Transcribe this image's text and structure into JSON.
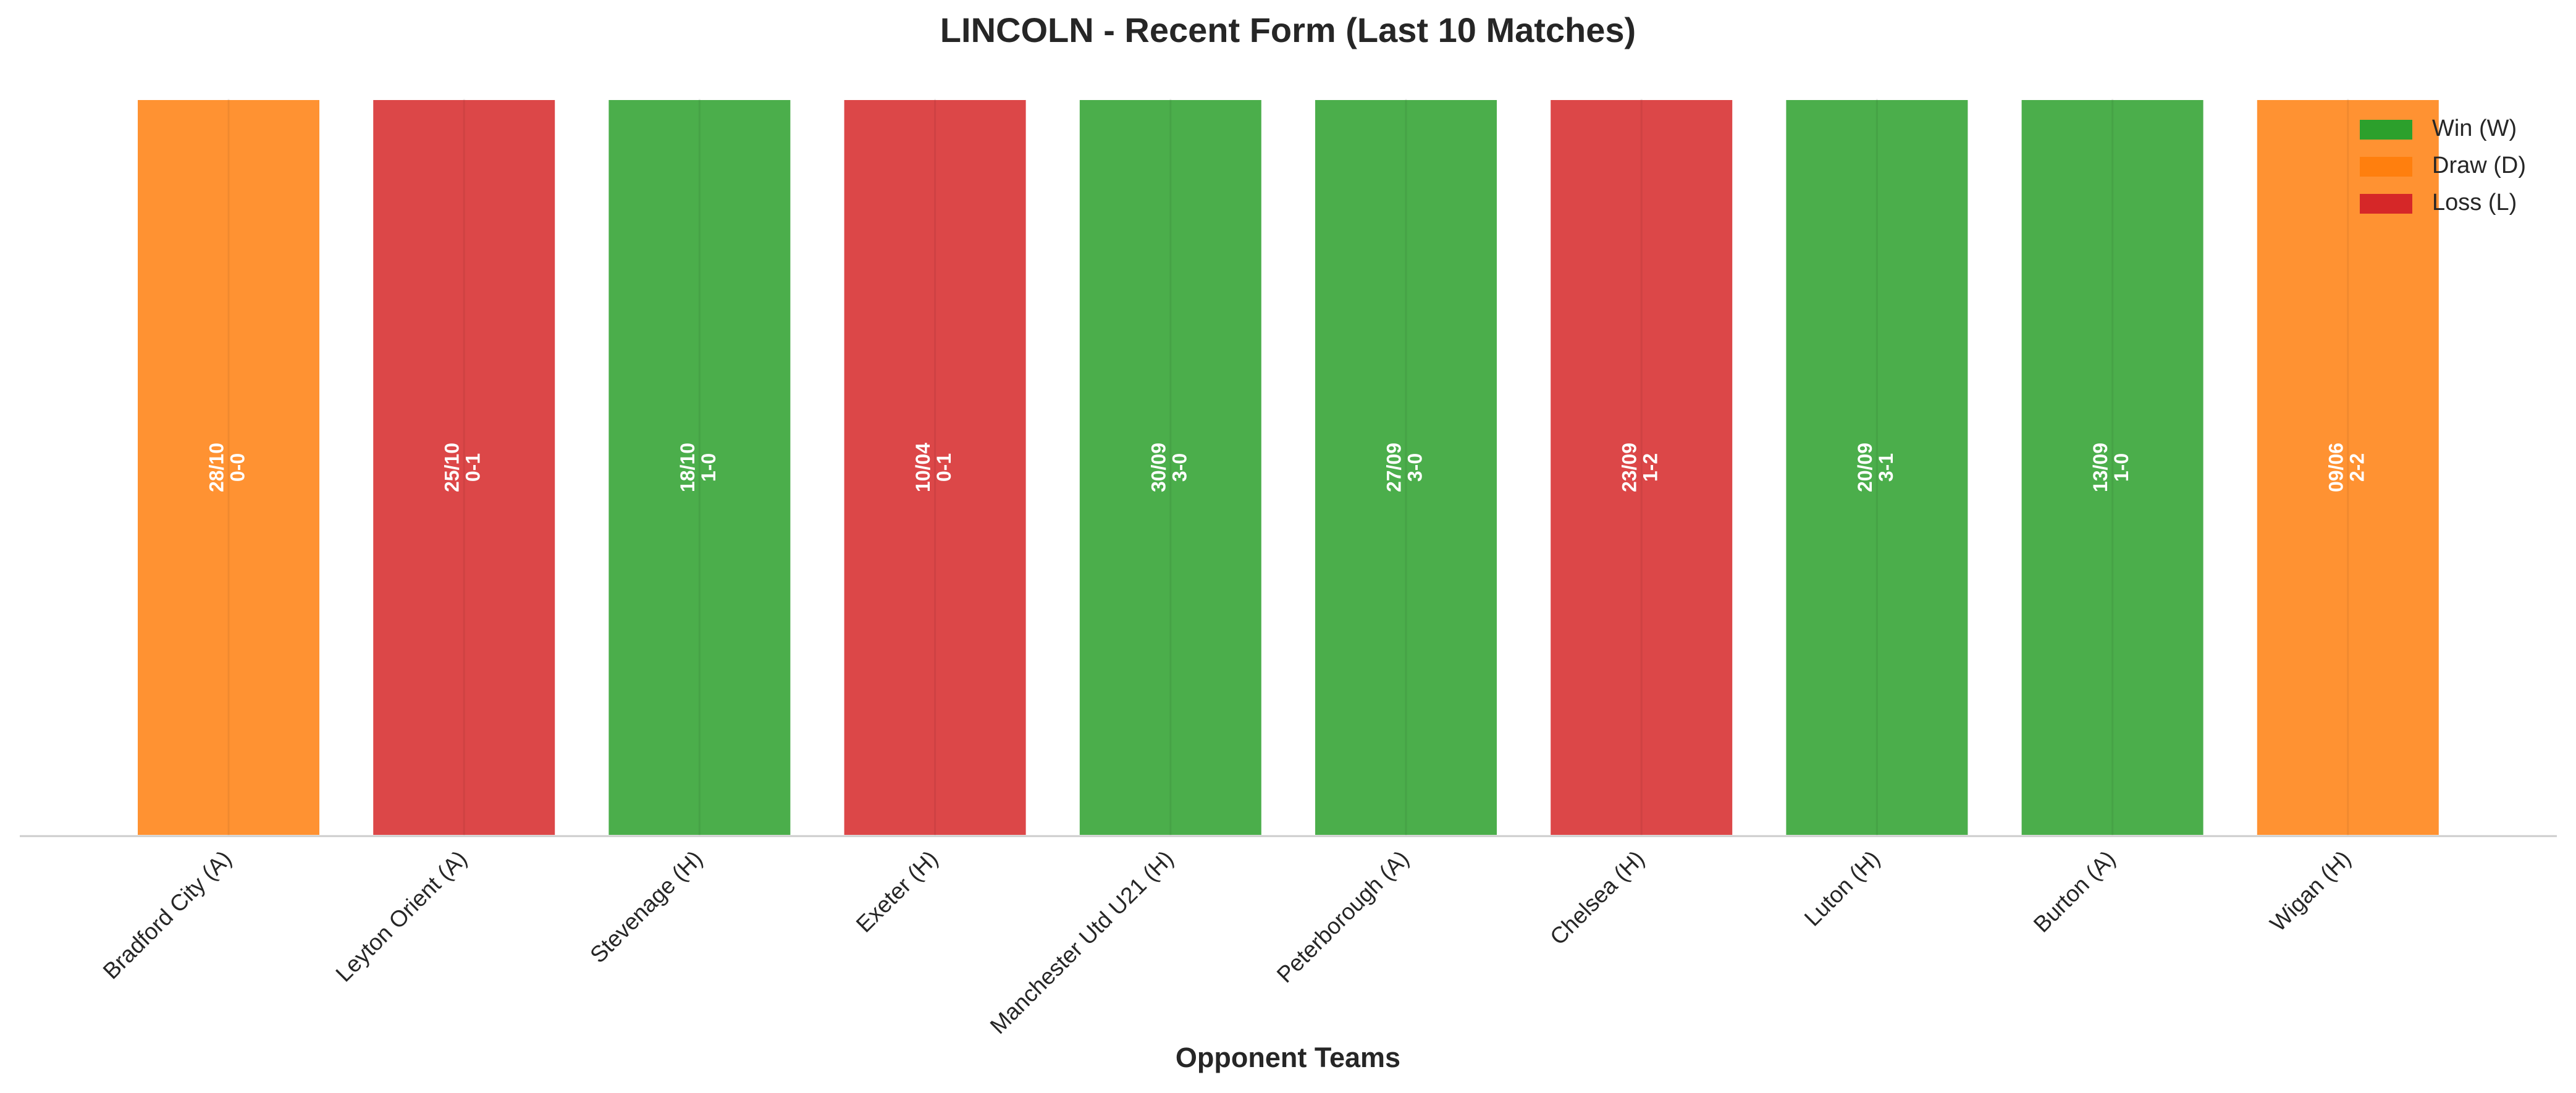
{
  "chart_data": {
    "type": "bar",
    "title": "LINCOLN - Recent Form (Last 10 Matches)",
    "x_label": "Opponent Teams",
    "categories": [
      "Bradford City (A)",
      "Leyton Orient (A)",
      "Stevenage (H)",
      "Exeter (H)",
      "Manchester Utd U21 (H)",
      "Peterborough (A)",
      "Chelsea (H)",
      "Luton (H)",
      "Burton (A)",
      "Wigan (H)"
    ],
    "dates": [
      "28/10",
      "25/10",
      "18/10",
      "10/04",
      "30/09",
      "27/09",
      "23/09",
      "20/09",
      "13/09",
      "09/06"
    ],
    "scores": [
      "0-0",
      "0-1",
      "1-0",
      "0-1",
      "3-0",
      "3-0",
      "1-2",
      "3-1",
      "1-0",
      "2-2"
    ],
    "series": [
      {
        "name": "Win (W)",
        "color": "#2ca02c",
        "values": [
          null,
          null,
          1,
          null,
          1,
          1,
          null,
          1,
          1,
          null
        ]
      },
      {
        "name": "Draw (D)",
        "color": "#ff7f0e",
        "values": [
          1,
          null,
          null,
          null,
          null,
          null,
          null,
          null,
          null,
          1
        ]
      },
      {
        "name": "Loss (L)",
        "color": "#d62728",
        "values": [
          null,
          1,
          null,
          1,
          null,
          null,
          1,
          null,
          null,
          null
        ]
      }
    ],
    "ylim": [
      0,
      1
    ],
    "grid": true,
    "legend": "upper right"
  }
}
